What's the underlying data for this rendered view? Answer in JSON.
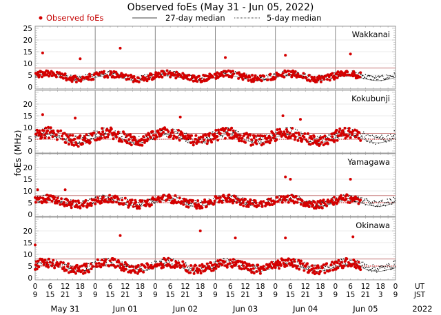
{
  "chart_data": {
    "type": "scatter",
    "title": "Observed foEs (May 31 - Jun 05, 2022)",
    "ylabel": "foEs (MHz)",
    "ylim": [
      0,
      25
    ],
    "yticks": [
      0,
      5,
      10,
      15,
      20,
      25
    ],
    "legend": {
      "placement": "top",
      "entries": [
        {
          "label": "Observed foEs",
          "style": "red-dot",
          "color": "#d40000"
        },
        {
          "label": "27-day median",
          "style": "solid-line",
          "color": "#000000"
        },
        {
          "label": "5-day median",
          "style": "dotted-line",
          "color": "#000000"
        }
      ]
    },
    "x_axis": {
      "range_hours_ut": [
        0,
        144
      ],
      "ut_label": "UT",
      "jst_label": "JST",
      "year_label": "2022",
      "ut_ticks": [
        "0",
        "6",
        "12",
        "18",
        "0",
        "6",
        "12",
        "18",
        "0",
        "6",
        "12",
        "18",
        "0",
        "6",
        "12",
        "18",
        "0",
        "6",
        "12",
        "18",
        "0",
        "6",
        "12",
        "18",
        "0"
      ],
      "jst_ticks": [
        "9",
        "15",
        "21",
        "3",
        "9",
        "15",
        "21",
        "3",
        "9",
        "15",
        "21",
        "3",
        "9",
        "15",
        "21",
        "3",
        "9",
        "15",
        "21",
        "3",
        "9",
        "15",
        "21",
        "3",
        "9"
      ],
      "days": [
        "May 31",
        "Jun 01",
        "Jun 02",
        "Jun 03",
        "Jun 04",
        "Jun 05"
      ]
    },
    "panels": [
      {
        "station": "Wakkanai",
        "ylim": [
          0,
          25
        ],
        "yticks": [
          "0",
          "5",
          "10",
          "15",
          "20",
          "25"
        ],
        "ref_line_27day_red": 8,
        "ref_line_5day_red_dotted": null,
        "observed_until_hour": 130,
        "base": 4.5,
        "amp": 1.8,
        "spikes": [
          [
            3,
            14.5
          ],
          [
            34,
            16.5
          ],
          [
            18,
            12
          ],
          [
            76,
            12.5
          ],
          [
            100,
            13.5
          ],
          [
            126,
            14
          ]
        ]
      },
      {
        "station": "Kokubunji",
        "ylim": [
          0,
          25
        ],
        "yticks": [
          "0",
          "5",
          "10",
          "15",
          "20"
        ],
        "ref_line_27day_red": 7.5,
        "ref_line_5day_red_dotted": 5,
        "observed_until_hour": 130,
        "base": 6,
        "amp": 3,
        "spikes": [
          [
            3,
            15.5
          ],
          [
            16,
            14
          ],
          [
            58,
            14.5
          ],
          [
            99,
            15
          ],
          [
            106,
            13.5
          ]
        ]
      },
      {
        "station": "Yamagawa",
        "ylim": [
          0,
          25
        ],
        "yticks": [
          "0",
          "5",
          "10",
          "15",
          "20"
        ],
        "ref_line_27day_red": 8,
        "ref_line_5day_red_dotted": 5,
        "observed_until_hour": 130,
        "base": 5.5,
        "amp": 2.2,
        "spikes": [
          [
            1,
            10.5
          ],
          [
            12,
            10.5
          ],
          [
            100,
            16
          ],
          [
            102,
            15
          ],
          [
            126,
            15
          ]
        ]
      },
      {
        "station": "Okinawa",
        "ylim": [
          0,
          25
        ],
        "yticks": [
          "0",
          "5",
          "10",
          "15",
          "20"
        ],
        "ref_line_27day_red": 8,
        "ref_line_5day_red_dotted": 5,
        "observed_until_hour": 130,
        "base": 5,
        "amp": 2.5,
        "spikes": [
          [
            0,
            14
          ],
          [
            34,
            18
          ],
          [
            66,
            20
          ],
          [
            80,
            17
          ],
          [
            100,
            17
          ],
          [
            127,
            17.5
          ]
        ]
      }
    ]
  }
}
